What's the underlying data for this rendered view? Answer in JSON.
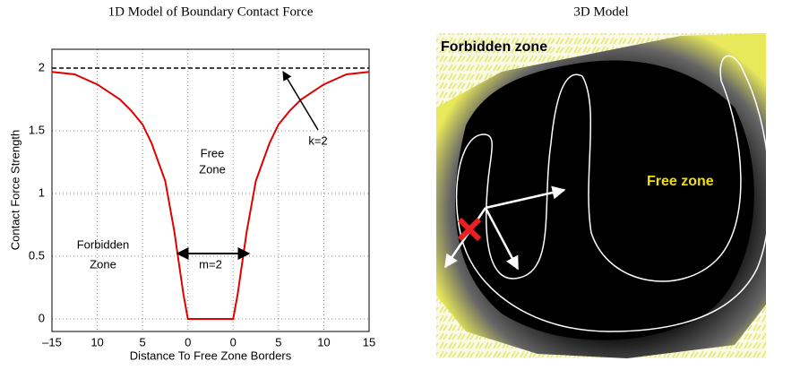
{
  "chart_data": {
    "type": "line",
    "title": "1D Model of Boundary Contact Force",
    "x_label": "Distance To Free Zone Borders",
    "y_label": "Contact Force Strength",
    "x": [
      -17.5,
      -15,
      -12.5,
      -10,
      -8.75,
      -7.5,
      -6.5,
      -5.5,
      -5,
      -4.5,
      -4,
      -3.5,
      -3,
      -2.5,
      2.5,
      3,
      3.5,
      4,
      4.5,
      5,
      5.5,
      6.5,
      7.5,
      8.75,
      10,
      12.5,
      15,
      17.5
    ],
    "series": [
      {
        "color": "#e00000",
        "values": [
          1.97,
          1.95,
          1.87,
          1.75,
          1.66,
          1.55,
          1.4,
          1.2,
          1.1,
          0.9,
          0.7,
          0.45,
          0.2,
          0,
          0,
          0.2,
          0.45,
          0.7,
          0.9,
          1.1,
          1.2,
          1.4,
          1.55,
          1.66,
          1.75,
          1.87,
          1.95,
          1.97
        ]
      }
    ],
    "hline": 2,
    "xlim": [
      -17.5,
      17.5
    ],
    "ylim": [
      -0.1,
      2.15
    ],
    "xticks": [
      {
        "value": -17.5,
        "label": "–15"
      },
      {
        "value": -12.5,
        "label": "10"
      },
      {
        "value": -7.5,
        "label": "5"
      },
      {
        "value": -2.5,
        "label": "0"
      },
      {
        "value": 2.5,
        "label": "0"
      },
      {
        "value": 7.5,
        "label": "5"
      },
      {
        "value": 12.5,
        "label": "10"
      },
      {
        "value": 17.5,
        "label": "15"
      }
    ],
    "yticks": [
      0,
      0.5,
      1,
      1.5,
      2
    ],
    "grid": true,
    "annotations": [
      "k=2",
      "Free",
      "Zone",
      "Forbidden",
      "Zone",
      "m=2"
    ]
  },
  "image": {
    "title": "3D Model",
    "labels": [
      "Forbidden zone",
      "Free zone"
    ]
  }
}
